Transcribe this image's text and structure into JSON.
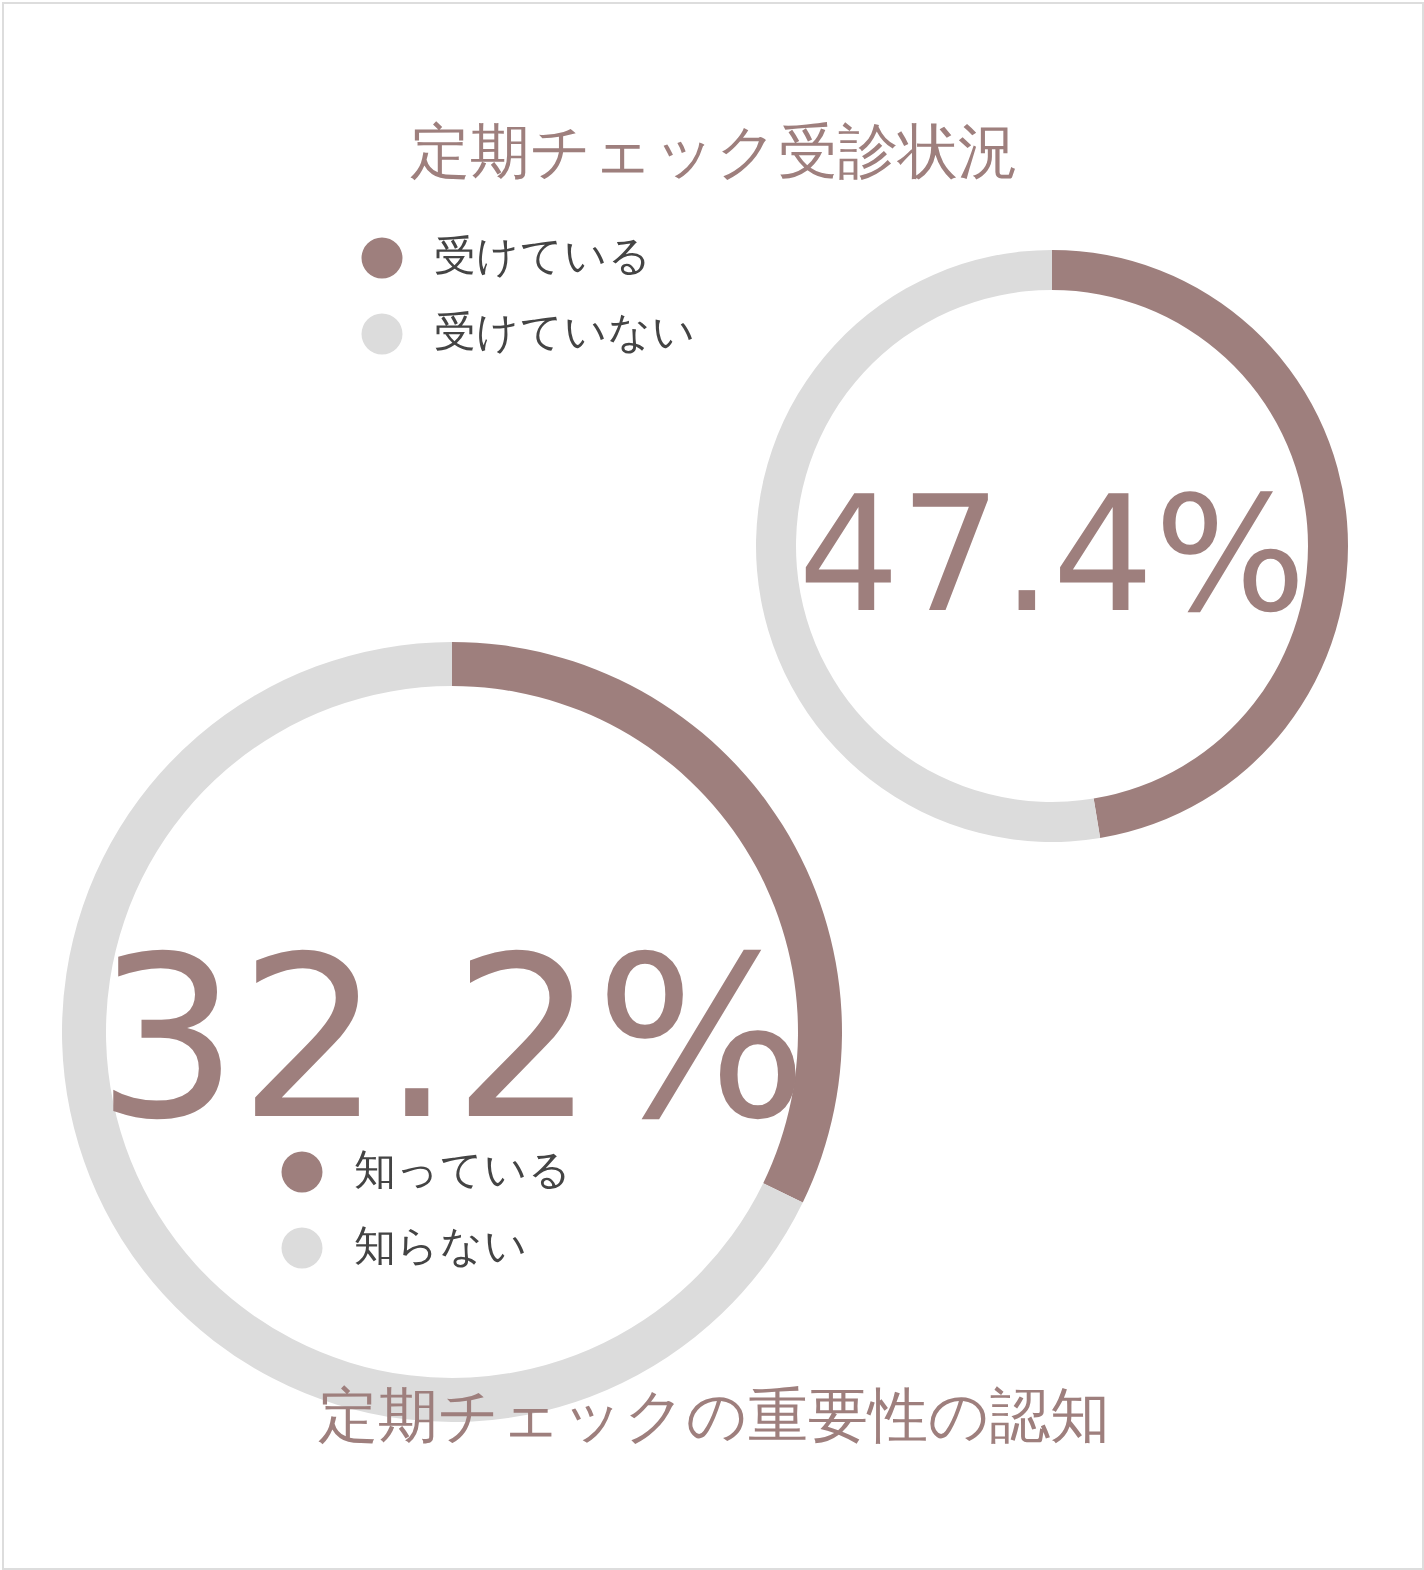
{
  "chart_data": [
    {
      "type": "donut",
      "title": "定期チェック受診状況",
      "categories": [
        "受けている",
        "受けていない"
      ],
      "values": [
        47.4,
        52.6
      ],
      "colors": [
        "#9e7f7d",
        "#dcdcdc"
      ],
      "value_labels": [
        "47.4%",
        null
      ],
      "legend": "top left"
    },
    {
      "type": "donut",
      "title": "定期チェックの重要性の認知",
      "categories": [
        "知っている",
        "知らない"
      ],
      "values": [
        32.2,
        67.8
      ],
      "colors": [
        "#9e7f7d",
        "#dcdcdc"
      ],
      "value_labels": [
        "32.2%",
        null
      ],
      "legend": "bottom"
    }
  ]
}
